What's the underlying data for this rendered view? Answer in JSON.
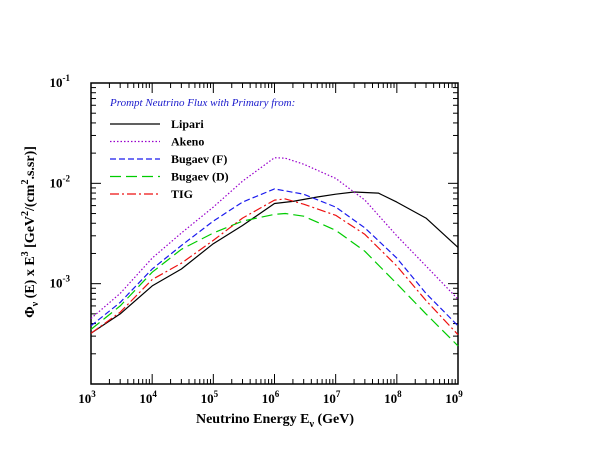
{
  "chart_data": {
    "type": "line",
    "xscale": "log",
    "yscale": "log",
    "xlim": [
      1000,
      1000000000
    ],
    "ylim": [
      0.0001,
      0.1
    ],
    "xlabel": "Neutrino Energy  E",
    "xlabel_sub": "ν",
    "xlabel_unit": " (GeV)",
    "ylabel_parts": [
      "Φ",
      "ν",
      " (E) x E",
      "3",
      "   [GeV",
      "2",
      "/(cm",
      "2",
      ".s.sr)]"
    ],
    "xticks": [
      {
        "base": "10",
        "exp": "3"
      },
      {
        "base": "10",
        "exp": "4"
      },
      {
        "base": "10",
        "exp": "5"
      },
      {
        "base": "10",
        "exp": "6"
      },
      {
        "base": "10",
        "exp": "7"
      },
      {
        "base": "10",
        "exp": "8"
      },
      {
        "base": "10",
        "exp": "9"
      }
    ],
    "yticks": [
      {
        "base": "10",
        "exp": "-3"
      },
      {
        "base": "10",
        "exp": "-2"
      },
      {
        "base": "10",
        "exp": "-1"
      }
    ],
    "grid": false,
    "legend_title": "Prompt Neutrino Flux with Primary from:",
    "legend_title_color": "#1a1acc",
    "legend_position": "top-left",
    "series": [
      {
        "name": "Lipari",
        "color": "#000000",
        "dash": "solid",
        "x": [
          1000,
          3000,
          10000,
          30000,
          100000,
          300000,
          1000000,
          2000000,
          5000000,
          10000000,
          20000000,
          50000000,
          100000000,
          300000000,
          1000000000
        ],
        "y": [
          0.00032,
          0.0005,
          0.00095,
          0.0014,
          0.0025,
          0.0038,
          0.0063,
          0.0066,
          0.0073,
          0.0078,
          0.0082,
          0.008,
          0.0065,
          0.0045,
          0.0023
        ]
      },
      {
        "name": "Akeno",
        "color": "#9900cc",
        "dash": "dotted",
        "x": [
          1000,
          3000,
          10000,
          30000,
          100000,
          300000,
          1000000,
          1500000,
          3000000,
          10000000,
          30000000,
          100000000,
          300000000,
          1000000000
        ],
        "y": [
          0.00045,
          0.0008,
          0.0018,
          0.0032,
          0.0058,
          0.0105,
          0.018,
          0.0178,
          0.0155,
          0.0112,
          0.0068,
          0.003,
          0.0015,
          0.0007
        ]
      },
      {
        "name": "Bugaev (F)",
        "color": "#1a1aee",
        "dash": "dashed",
        "x": [
          1000,
          3000,
          10000,
          30000,
          100000,
          300000,
          1000000,
          3000000,
          10000000,
          30000000,
          100000000,
          300000000,
          1000000000
        ],
        "y": [
          0.00038,
          0.00065,
          0.0014,
          0.0024,
          0.0042,
          0.0065,
          0.0088,
          0.0078,
          0.0058,
          0.0036,
          0.0018,
          0.0008,
          0.00038
        ]
      },
      {
        "name": "Bugaev (D)",
        "color": "#00cc00",
        "dash": "longdash",
        "x": [
          1000,
          3000,
          10000,
          30000,
          100000,
          300000,
          1000000,
          1500000,
          3000000,
          10000000,
          30000000,
          100000000,
          300000000,
          1000000000
        ],
        "y": [
          0.00035,
          0.0006,
          0.0013,
          0.0022,
          0.0032,
          0.0042,
          0.0049,
          0.005,
          0.0047,
          0.0034,
          0.0021,
          0.001,
          0.0005,
          0.00024
        ]
      },
      {
        "name": "TIG",
        "color": "#ee1111",
        "dash": "dashdot",
        "x": [
          1000,
          3000,
          10000,
          30000,
          100000,
          300000,
          1000000,
          1500000,
          3000000,
          10000000,
          30000000,
          100000000,
          300000000,
          1000000000
        ],
        "y": [
          0.00032,
          0.00052,
          0.0011,
          0.0016,
          0.0027,
          0.0045,
          0.0068,
          0.007,
          0.0062,
          0.0048,
          0.0031,
          0.0015,
          0.00068,
          0.00031
        ]
      }
    ]
  }
}
